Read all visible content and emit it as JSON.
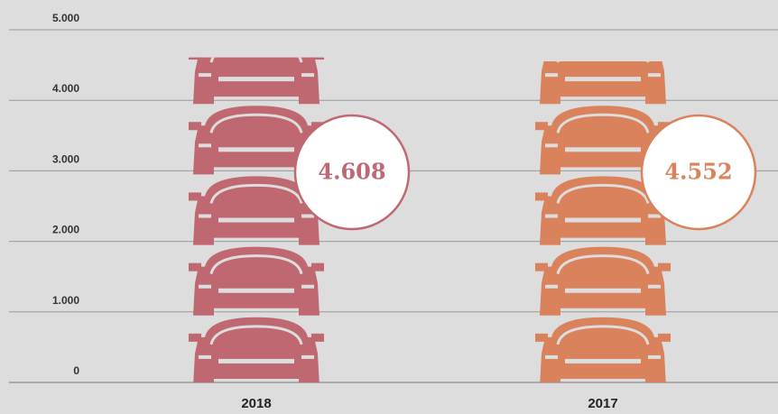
{
  "chart_data": {
    "type": "pictograph",
    "categories": [
      "2018",
      "2017"
    ],
    "values": [
      4608,
      4552
    ],
    "value_labels": [
      "4.608",
      "4.552"
    ],
    "colors": [
      "#bf6872",
      "#d9825b"
    ],
    "unit_per_icon": 1000,
    "ylim": [
      0,
      5000
    ],
    "yticks": [
      0,
      {
        "value": 1000,
        "label": "1.000"
      },
      {
        "value": 2000,
        "label": "2.000"
      },
      {
        "value": 3000,
        "label": "3.000"
      },
      {
        "value": 4000,
        "label": "4.000"
      },
      {
        "value": 5000,
        "label": "5.000"
      }
    ],
    "grid": true
  }
}
